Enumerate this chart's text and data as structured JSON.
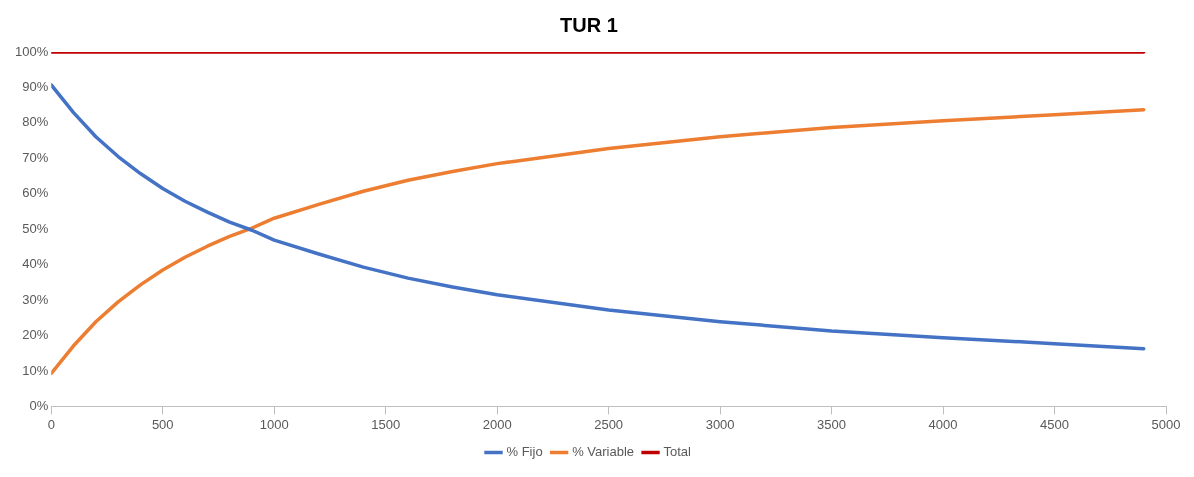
{
  "chart_data": {
    "type": "line",
    "title": "TUR 1",
    "x": [
      0,
      100,
      200,
      300,
      400,
      500,
      600,
      700,
      800,
      900,
      1000,
      1200,
      1400,
      1600,
      1800,
      2000,
      2500,
      3000,
      3500,
      4000,
      4500,
      4900
    ],
    "series": [
      {
        "name": "% Fijo",
        "color": "#4472c4",
        "values": [
          90.7,
          82.9,
          76.1,
          70.5,
          65.7,
          61.5,
          57.9,
          54.8,
          52,
          49.7,
          46.9,
          43,
          39.3,
          36.2,
          33.7,
          31.5,
          27.2,
          23.9,
          21.3,
          19.4,
          17.7,
          16.3
        ]
      },
      {
        "name": "% Variable",
        "color": "#ed7d31",
        "values": [
          9.3,
          17.1,
          23.9,
          29.5,
          34.3,
          38.5,
          42.1,
          45.2,
          48,
          50.3,
          53.1,
          57,
          60.7,
          63.8,
          66.3,
          68.5,
          72.8,
          76.1,
          78.7,
          80.6,
          82.3,
          83.7
        ]
      },
      {
        "name": "Total",
        "color": "#c00000",
        "x": [
          0,
          4900
        ],
        "values": [
          100,
          100
        ]
      }
    ],
    "xlim": [
      0,
      5000
    ],
    "xticks": [
      0,
      500,
      1000,
      1500,
      2000,
      2500,
      3000,
      3500,
      4000,
      4500,
      5000
    ],
    "ylim": [
      0,
      100
    ],
    "yticks": [
      {
        "value": 0,
        "label": "0%"
      },
      {
        "value": 10,
        "label": "10%"
      },
      {
        "value": 20,
        "label": "20%"
      },
      {
        "value": 30,
        "label": "30%"
      },
      {
        "value": 40,
        "label": "40%"
      },
      {
        "value": 50,
        "label": "50%"
      },
      {
        "value": 60,
        "label": "60%"
      },
      {
        "value": 70,
        "label": "70%"
      },
      {
        "value": 80,
        "label": "80%"
      },
      {
        "value": 90,
        "label": "90%"
      },
      {
        "value": 100,
        "label": "100%"
      }
    ],
    "grid": false,
    "legend": "bottom",
    "marker": "none",
    "line_style": "solid"
  }
}
